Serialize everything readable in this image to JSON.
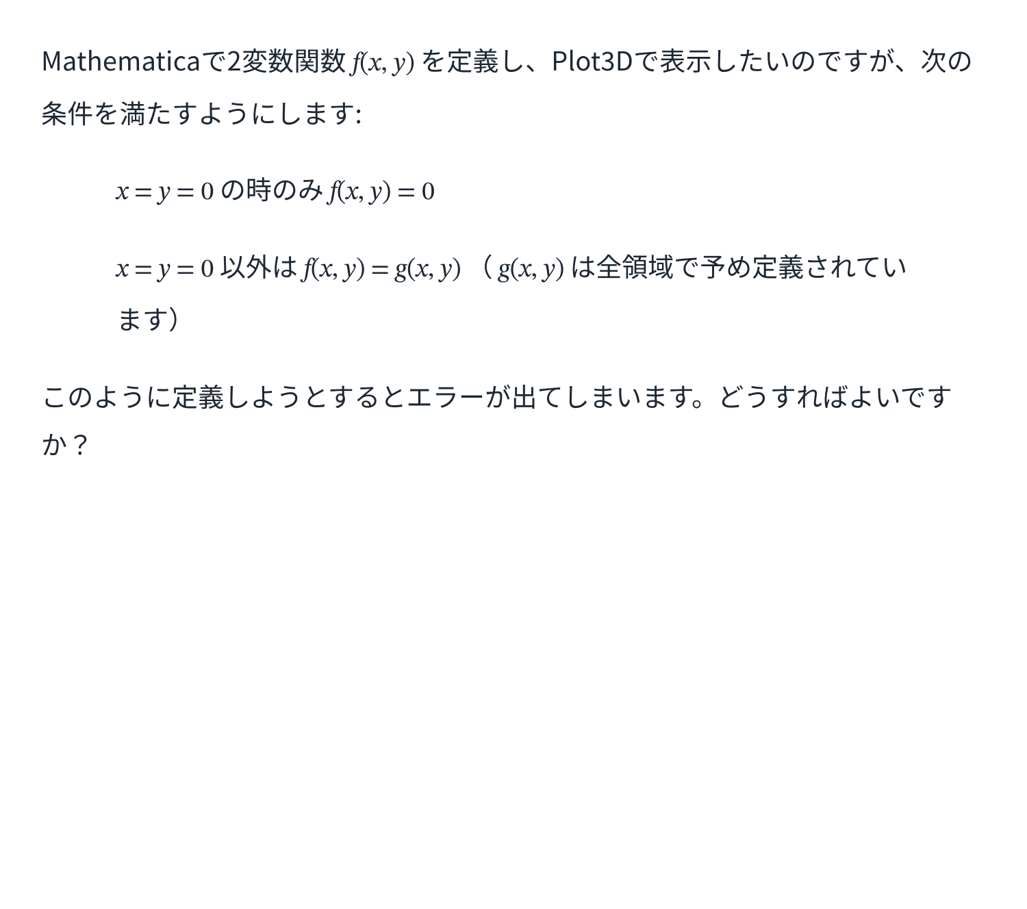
{
  "colors": {
    "text": "#1d2733",
    "background": "#ffffff"
  },
  "typography": {
    "body_family": "sans-serif (Japanese UI, e.g. Hiragino/Meiryo)",
    "math_family": "serif italic (STIX/Computer Modern style)",
    "body_fontsize_pt": 29,
    "line_height": 1.85
  },
  "intro": {
    "pre1": "Mathematicaで2変数関数 ",
    "fxy": "f(x, y)",
    "post1": " を定義し、Plot3Dで表示したいのですが、次の条件を満たすようにします:"
  },
  "items": [
    {
      "cond_lhs": "x = y = 0",
      "cond_text": " の時のみ ",
      "rhs": "f(x, y) = 0"
    },
    {
      "cond_lhs": "x = y = 0",
      "cond_text": " 以外は ",
      "rhs": "f(x, y) = g(x, y)",
      "tail_open": " （",
      "gxy": "g(x, y)",
      "tail_text": " は全領域で予め定義されています）"
    }
  ],
  "outro": "このように定義しようとするとエラーが出てしまいます。どうすればよいですか？"
}
